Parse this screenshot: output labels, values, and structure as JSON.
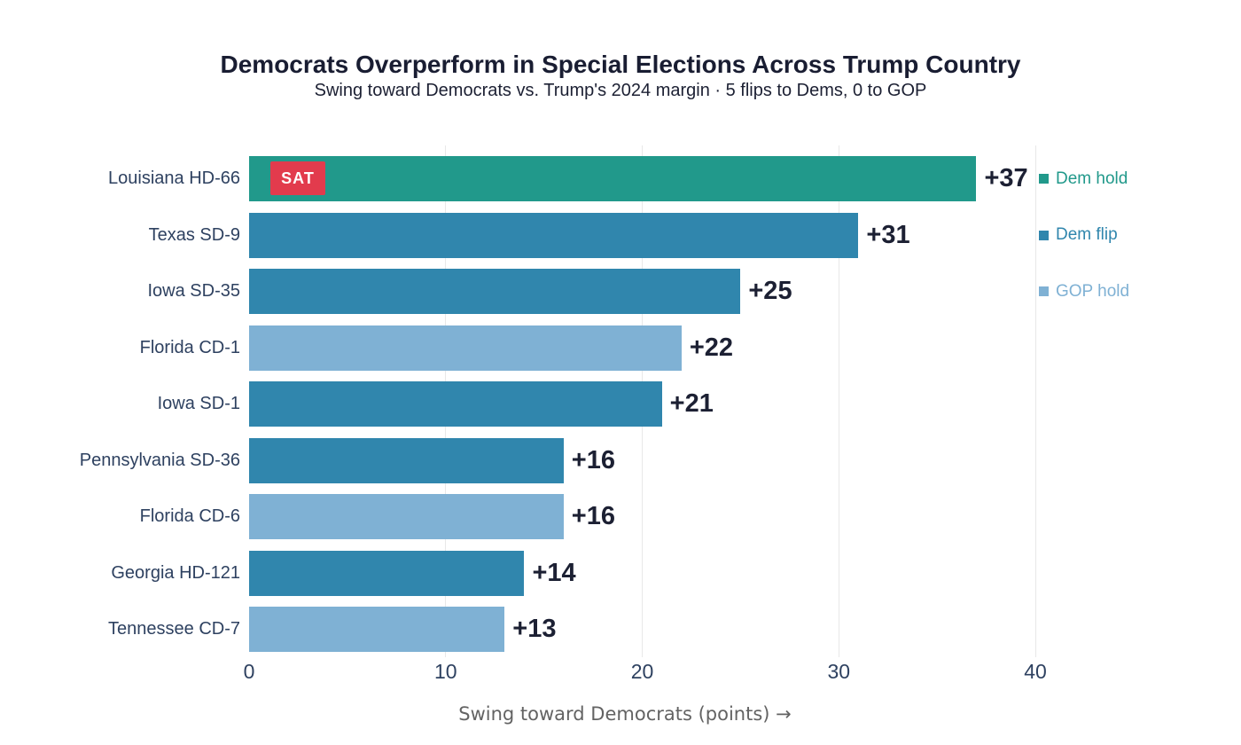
{
  "figure": {
    "title": "Democrats Overperform in Special Elections Across Trump Country",
    "subtitle": "Swing toward Democrats vs. Trump's 2024 margin · 5 flips to Dems, 0 to GOP"
  },
  "chart_data": {
    "type": "bar",
    "orientation": "horizontal",
    "title": "Democrats Overperform in Special Elections Across Trump Country",
    "subtitle": "Swing toward Democrats vs. Trump's 2024 margin · 5 flips to Dems, 0 to GOP",
    "xlabel": "Swing toward Democrats (points) →",
    "xlim": [
      0,
      40
    ],
    "x_ticks": [
      0,
      10,
      20,
      30,
      40
    ],
    "grid": true,
    "legend_position": "right-top",
    "rows": [
      {
        "label": "Louisiana HD-66",
        "value": 37,
        "value_label": "+37",
        "status": "Dem hold",
        "badge": "SAT"
      },
      {
        "label": "Texas SD-9",
        "value": 31,
        "value_label": "+31",
        "status": "Dem flip",
        "badge": null
      },
      {
        "label": "Iowa SD-35",
        "value": 25,
        "value_label": "+25",
        "status": "Dem flip",
        "badge": null
      },
      {
        "label": "Florida CD-1",
        "value": 22,
        "value_label": "+22",
        "status": "GOP hold",
        "badge": null
      },
      {
        "label": "Iowa SD-1",
        "value": 21,
        "value_label": "+21",
        "status": "Dem flip",
        "badge": null
      },
      {
        "label": "Pennsylvania SD-36",
        "value": 16,
        "value_label": "+16",
        "status": "Dem flip",
        "badge": null
      },
      {
        "label": "Florida CD-6",
        "value": 16,
        "value_label": "+16",
        "status": "GOP hold",
        "badge": null
      },
      {
        "label": "Georgia HD-121",
        "value": 14,
        "value_label": "+14",
        "status": "Dem flip",
        "badge": null
      },
      {
        "label": "Tennessee CD-7",
        "value": 13,
        "value_label": "+13",
        "status": "GOP hold",
        "badge": null
      }
    ],
    "legend": [
      {
        "label": "Dem hold",
        "color": "#21998b"
      },
      {
        "label": "Dem flip",
        "color": "#3086ad"
      },
      {
        "label": "GOP hold",
        "color": "#7fb1d4"
      }
    ]
  },
  "colors": {
    "dem_hold": "#21998b",
    "dem_flip": "#3086ad",
    "gop_hold": "#7fb1d4",
    "badge_background": "#e23b4d",
    "badge_text": "#ffffff",
    "title_text": "#191d32",
    "category_text": "#2e4160",
    "value_text": "#1c2033",
    "tick_text": "#2e4160",
    "axis_title_text": "#636363",
    "gridline": "#e8e8e8",
    "background": "#ffffff"
  }
}
